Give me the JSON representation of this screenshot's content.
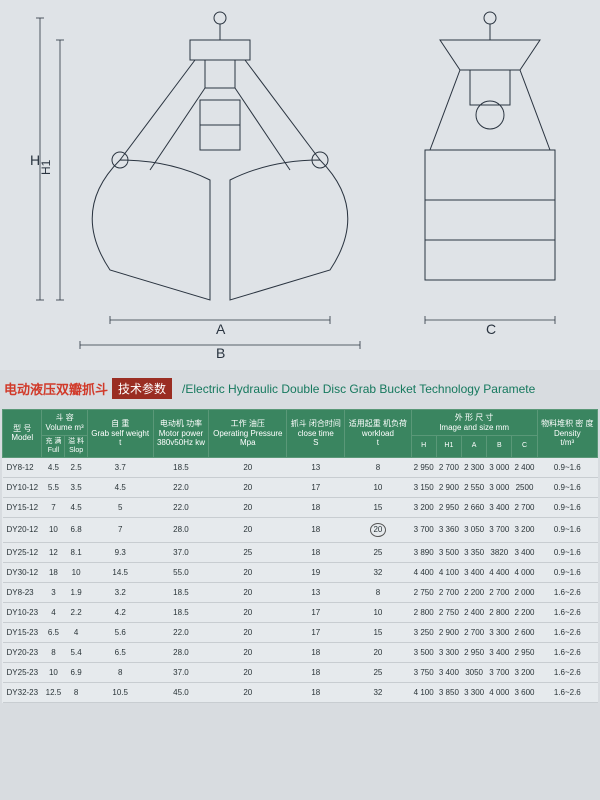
{
  "title": {
    "cn_prefix": "电动液压双瓣抓斗",
    "badge": "技术参数",
    "en": "/Electric Hydraulic Double Disc Grab Bucket  Technology Paramete"
  },
  "diagram": {
    "labels": {
      "H": "H",
      "H1": "H1",
      "A": "A",
      "B": "B",
      "C": "C"
    },
    "stroke": "#2a3440",
    "fill": "#dfe3e7"
  },
  "table": {
    "headers": {
      "model": "型 号",
      "model_sub": "Model",
      "volume": "斗 容",
      "volume_sub": "Volume m³",
      "full": "充 满",
      "full_sub": "Full",
      "slop": "溢 料",
      "slop_sub": "Slop",
      "selfweight": "自 重",
      "selfweight_sub": "Grab self weight",
      "t": "t",
      "motor": "电动机 功率",
      "motor_sub": "Motor power",
      "motor_unit": "380v50Hz kw",
      "pressure": "工作 油压",
      "pressure_sub": "Operating Pressure",
      "mpa": "Mpa",
      "closetime": "抓斗 闭合时间",
      "closetime_sub": "close time",
      "s": "S",
      "workload": "适用起重 机负荷",
      "workload_sub": "workload",
      "size": "外 形 尺 寸",
      "size_sub": "Image and size mm",
      "H": "H",
      "H1": "H1",
      "A": "A",
      "B": "B",
      "C": "C",
      "density": "物料堆积 密 度",
      "density_sub": "Density",
      "density_unit": "t/m³"
    },
    "rows": [
      {
        "model": "DY8-12",
        "full": "4.5",
        "slop": "2.5",
        "wt": "3.7",
        "kw": "18.5",
        "mpa": "20",
        "s": "13",
        "load": "8",
        "h": "2 950",
        "h1": "2 700",
        "a": "2 300",
        "b": "3 000",
        "c": "2 400",
        "d": "0.9~1.6"
      },
      {
        "model": "DY10-12",
        "full": "5.5",
        "slop": "3.5",
        "wt": "4.5",
        "kw": "22.0",
        "mpa": "20",
        "s": "17",
        "load": "10",
        "h": "3 150",
        "h1": "2 900",
        "a": "2 550",
        "b": "3 000",
        "c": "2500",
        "d": "0.9~1.6"
      },
      {
        "model": "DY15-12",
        "full": "7",
        "slop": "4.5",
        "wt": "5",
        "kw": "22.0",
        "mpa": "20",
        "s": "18",
        "load": "15",
        "h": "3 200",
        "h1": "2 950",
        "a": "2 660",
        "b": "3 400",
        "c": "2 700",
        "d": "0.9~1.6"
      },
      {
        "model": "DY20-12",
        "full": "10",
        "slop": "6.8",
        "wt": "7",
        "kw": "28.0",
        "mpa": "20",
        "s": "18",
        "load": "20",
        "circled": true,
        "h": "3 700",
        "h1": "3 360",
        "a": "3 050",
        "b": "3 700",
        "c": "3 200",
        "d": "0.9~1.6"
      },
      {
        "model": "DY25-12",
        "full": "12",
        "slop": "8.1",
        "wt": "9.3",
        "kw": "37.0",
        "mpa": "25",
        "s": "18",
        "load": "25",
        "h": "3 890",
        "h1": "3 500",
        "a": "3 350",
        "b": "3820",
        "c": "3 400",
        "d": "0.9~1.6"
      },
      {
        "model": "DY30-12",
        "full": "18",
        "slop": "10",
        "wt": "14.5",
        "kw": "55.0",
        "mpa": "20",
        "s": "19",
        "load": "32",
        "h": "4 400",
        "h1": "4 100",
        "a": "3 400",
        "b": "4 400",
        "c": "4 000",
        "d": "0.9~1.6"
      },
      {
        "model": "DY8-23",
        "full": "3",
        "slop": "1.9",
        "wt": "3.2",
        "kw": "18.5",
        "mpa": "20",
        "s": "13",
        "load": "8",
        "h": "2 750",
        "h1": "2 700",
        "a": "2 200",
        "b": "2 700",
        "c": "2 000",
        "d": "1.6~2.6"
      },
      {
        "model": "DY10-23",
        "full": "4",
        "slop": "2.2",
        "wt": "4.2",
        "kw": "18.5",
        "mpa": "20",
        "s": "17",
        "load": "10",
        "h": "2 800",
        "h1": "2 750",
        "a": "2 400",
        "b": "2 800",
        "c": "2 200",
        "d": "1.6~2.6"
      },
      {
        "model": "DY15-23",
        "full": "6.5",
        "slop": "4",
        "wt": "5.6",
        "kw": "22.0",
        "mpa": "20",
        "s": "17",
        "load": "15",
        "h": "3 250",
        "h1": "2 900",
        "a": "2 700",
        "b": "3 300",
        "c": "2 600",
        "d": "1.6~2.6"
      },
      {
        "model": "DY20-23",
        "full": "8",
        "slop": "5.4",
        "wt": "6.5",
        "kw": "28.0",
        "mpa": "20",
        "s": "18",
        "load": "20",
        "h": "3 500",
        "h1": "3 300",
        "a": "2 950",
        "b": "3 400",
        "c": "2 950",
        "d": "1.6~2.6"
      },
      {
        "model": "DY25-23",
        "full": "10",
        "slop": "6.9",
        "wt": "8",
        "kw": "37.0",
        "mpa": "20",
        "s": "18",
        "load": "25",
        "h": "3 750",
        "h1": "3 400",
        "a": "3050",
        "b": "3 700",
        "c": "3 200",
        "d": "1.6~2.6"
      },
      {
        "model": "DY32-23",
        "full": "12.5",
        "slop": "8",
        "wt": "10.5",
        "kw": "45.0",
        "mpa": "20",
        "s": "18",
        "load": "32",
        "h": "4 100",
        "h1": "3 850",
        "a": "3 300",
        "b": "4 000",
        "c": "3 600",
        "d": "1.6~2.6"
      }
    ]
  }
}
